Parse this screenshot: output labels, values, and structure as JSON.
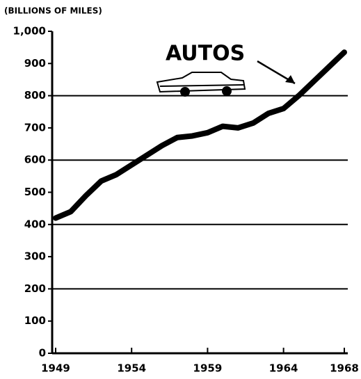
{
  "chart_data": {
    "type": "line",
    "y_label": "(BILLIONS OF MILES)",
    "annotation": "AUTOS",
    "x": [
      1949,
      1950,
      1951,
      1952,
      1953,
      1954,
      1955,
      1956,
      1957,
      1958,
      1959,
      1960,
      1961,
      1962,
      1963,
      1964,
      1965,
      1966,
      1967,
      1968
    ],
    "series": [
      {
        "name": "AUTOS",
        "color": "#000000",
        "values": [
          420,
          440,
          490,
          535,
          555,
          585,
          615,
          645,
          670,
          675,
          685,
          705,
          700,
          715,
          745,
          760,
          800,
          845,
          890,
          935
        ]
      }
    ],
    "xlim": [
      1949,
      1968
    ],
    "xticks": [
      1949,
      1954,
      1959,
      1964,
      1968
    ],
    "ylim": [
      0,
      1000
    ],
    "yticks": [
      0,
      100,
      200,
      300,
      400,
      500,
      600,
      700,
      800,
      900,
      {
        "value": 1000,
        "label": "1,000"
      }
    ],
    "grid_lines": [
      200,
      400,
      600,
      800
    ]
  }
}
